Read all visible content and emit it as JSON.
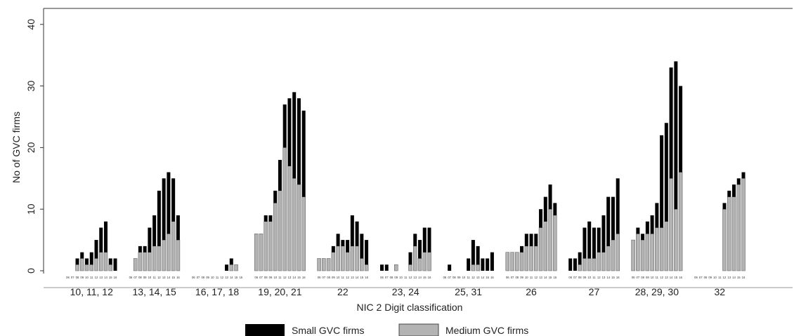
{
  "chart_data": {
    "type": "bar",
    "stacked": true,
    "xlabel": "NIC 2 Digit classification",
    "ylabel": "No of GVC firms",
    "ylim": [
      0,
      41
    ],
    "yticks": [
      0,
      10,
      20,
      30,
      40
    ],
    "grid": false,
    "legend_position": "bottom",
    "year_labels": [
      "06",
      "07",
      "08",
      "09",
      "10",
      "11",
      "12",
      "13",
      "14",
      "15",
      "16"
    ],
    "series": [
      {
        "name": "Small GVC firms",
        "color": "#000000"
      },
      {
        "name": "Medium GVC firms",
        "color": "#b3b3b3"
      }
    ],
    "groups": [
      {
        "label": "10, 11, 12",
        "small": [
          0,
          0,
          1,
          1,
          1,
          2,
          3,
          4,
          5,
          1,
          2
        ],
        "medium": [
          0,
          0,
          1,
          2,
          1,
          1,
          2,
          3,
          3,
          1,
          0
        ]
      },
      {
        "label": "13, 14, 15",
        "small": [
          0,
          0,
          1,
          1,
          4,
          5,
          9,
          10,
          10,
          7,
          4
        ],
        "medium": [
          0,
          2,
          3,
          3,
          3,
          4,
          4,
          5,
          6,
          8,
          5
        ]
      },
      {
        "label": "16, 17, 18",
        "small": [
          0,
          0,
          0,
          0,
          0,
          0,
          0,
          1,
          1,
          0,
          0
        ],
        "medium": [
          0,
          0,
          0,
          0,
          0,
          0,
          0,
          0,
          1,
          1,
          0
        ]
      },
      {
        "label": "19, 20, 21",
        "small": [
          0,
          0,
          1,
          1,
          2,
          5,
          7,
          11,
          14,
          14,
          14
        ],
        "medium": [
          6,
          6,
          8,
          8,
          11,
          13,
          20,
          17,
          15,
          14,
          12
        ]
      },
      {
        "label": "22",
        "small": [
          0,
          0,
          0,
          1,
          2,
          1,
          2,
          5,
          4,
          4,
          4
        ],
        "medium": [
          2,
          2,
          2,
          3,
          4,
          4,
          3,
          4,
          4,
          2,
          1
        ]
      },
      {
        "label": "23, 24",
        "small": [
          1,
          1,
          0,
          0,
          0,
          0,
          2,
          2,
          3,
          4,
          4
        ],
        "medium": [
          0,
          0,
          0,
          1,
          0,
          0,
          1,
          4,
          2,
          3,
          3
        ]
      },
      {
        "label": "25, 31",
        "small": [
          0,
          1,
          0,
          0,
          0,
          2,
          4,
          3,
          2,
          2,
          3
        ],
        "medium": [
          0,
          0,
          0,
          0,
          0,
          0,
          1,
          1,
          0,
          0,
          0
        ]
      },
      {
        "label": "26",
        "small": [
          0,
          0,
          0,
          1,
          2,
          2,
          2,
          3,
          4,
          4,
          2
        ],
        "medium": [
          3,
          3,
          3,
          3,
          4,
          4,
          4,
          7,
          8,
          10,
          9
        ]
      },
      {
        "label": "27",
        "small": [
          2,
          2,
          2,
          5,
          6,
          5,
          4,
          6,
          8,
          7,
          9
        ],
        "medium": [
          0,
          0,
          1,
          2,
          2,
          2,
          3,
          3,
          4,
          5,
          6
        ]
      },
      {
        "label": "28, 29, 30",
        "small": [
          0,
          1,
          1,
          2,
          3,
          4,
          15,
          16,
          18,
          24,
          14
        ],
        "medium": [
          5,
          6,
          5,
          6,
          6,
          7,
          7,
          8,
          15,
          10,
          16
        ]
      },
      {
        "label": "32",
        "small": [
          0,
          0,
          0,
          0,
          0,
          0,
          1,
          1,
          2,
          1,
          1
        ],
        "medium": [
          0,
          0,
          0,
          0,
          0,
          0,
          10,
          12,
          12,
          14,
          15
        ]
      }
    ]
  }
}
